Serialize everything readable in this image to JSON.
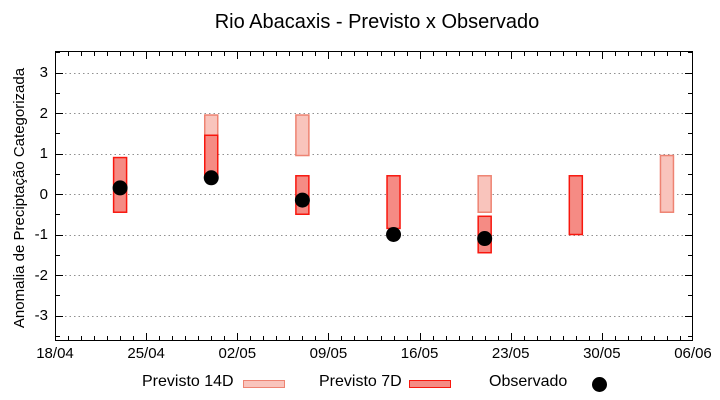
{
  "chart_data": {
    "type": "bar",
    "title": "Rio Abacaxis - Previsto x Observado",
    "xlabel": "",
    "ylabel": "Anomalia de Preciptação Categorizada",
    "ylim": [
      -3.6,
      3.6
    ],
    "yticks": [
      -3,
      -2,
      -1,
      0,
      1,
      2,
      3
    ],
    "xtick_labels": [
      "18/04",
      "25/04",
      "02/05",
      "09/05",
      "16/05",
      "23/05",
      "30/05",
      "06/06"
    ],
    "xtick_interval_days": 7,
    "x_start_date": "18/04",
    "x_end_date": "06/06",
    "grid": "horizontal dotted",
    "legend_position": "bottom outside",
    "legend_items": [
      {
        "label": "Previsto 14D",
        "swatch": "box",
        "fill": "#f9c4bc",
        "stroke": "#ee8372"
      },
      {
        "label": "Previsto 7D",
        "swatch": "box",
        "fill": "#f58b84",
        "stroke": "#f8170e"
      },
      {
        "label": "Observado",
        "swatch": "dot",
        "fill": "#000000",
        "stroke": "#000000"
      }
    ],
    "grid_color": "#909090",
    "series": [
      {
        "name": "Previsto 14D",
        "type": "range-bar",
        "points": [
          {
            "date": "30/04",
            "day": 12,
            "range": [
              1.45,
              1.95
            ]
          },
          {
            "date": "07/05",
            "day": 19,
            "range": [
              0.95,
              1.95
            ]
          },
          {
            "date": "21/05",
            "day": 33,
            "range": [
              -0.45,
              0.45
            ]
          },
          {
            "date": "04/06",
            "day": 47,
            "range": [
              -0.45,
              0.95
            ]
          }
        ]
      },
      {
        "name": "Previsto 7D",
        "type": "range-bar",
        "points": [
          {
            "date": "23/04",
            "day": 5,
            "range": [
              -0.45,
              0.9
            ]
          },
          {
            "date": "30/04",
            "day": 12,
            "range": [
              0.45,
              1.45
            ]
          },
          {
            "date": "07/05",
            "day": 19,
            "range": [
              -0.5,
              0.45
            ]
          },
          {
            "date": "14/05",
            "day": 26,
            "range": [
              -0.85,
              0.45
            ]
          },
          {
            "date": "21/05",
            "day": 33,
            "range": [
              -1.45,
              -0.55
            ]
          },
          {
            "date": "28/05",
            "day": 40,
            "range": [
              -1.0,
              0.45
            ]
          }
        ]
      },
      {
        "name": "Observado",
        "type": "scatter",
        "points": [
          {
            "date": "23/04",
            "day": 5,
            "value": 0.15
          },
          {
            "date": "30/04",
            "day": 12,
            "value": 0.4
          },
          {
            "date": "07/05",
            "day": 19,
            "value": -0.15
          },
          {
            "date": "14/05",
            "day": 26,
            "value": -1.0
          },
          {
            "date": "21/05",
            "day": 33,
            "value": -1.1
          }
        ]
      }
    ]
  }
}
